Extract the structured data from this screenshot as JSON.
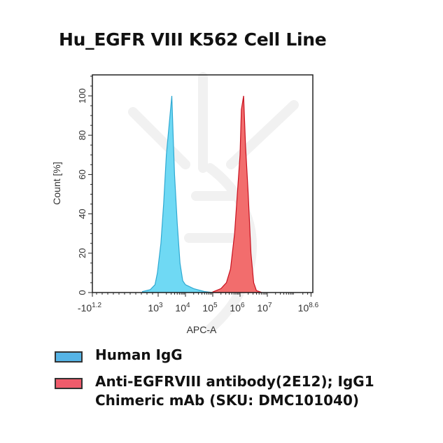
{
  "title": "Hu_EGFR VIII K562 Cell Line",
  "chart_data": {
    "type": "area",
    "title": "Hu_EGFR VIII K562 Cell Line",
    "xlabel": "APC-A",
    "ylabel": "Count [%]",
    "x_scale": "biexponential (log)",
    "x_ticks": [
      {
        "base": "-10",
        "exp": "1.2"
      },
      {
        "base": "10",
        "exp": "3"
      },
      {
        "base": "10",
        "exp": "4"
      },
      {
        "base": "10",
        "exp": "5"
      },
      {
        "base": "10",
        "exp": "6"
      },
      {
        "base": "10",
        "exp": "7"
      },
      {
        "base": "10",
        "exp": "8.6"
      }
    ],
    "y_ticks": [
      "0",
      "20",
      "40",
      "60",
      "80",
      "100"
    ],
    "ylim": [
      0,
      110
    ],
    "grid": false,
    "legend_placement": "bottom",
    "series": [
      {
        "name": "Human IgG",
        "color": "#6fd9f4",
        "stroke": "#2fa9d2",
        "x": [
          100,
          316,
          631,
          891,
          1259,
          1585,
          1995,
          2512,
          3162,
          3548,
          3981,
          5012,
          6310,
          7943,
          10000,
          19953,
          50119,
          100000
        ],
        "y": [
          0.5,
          1.5,
          4,
          10,
          25,
          45,
          70,
          85,
          100,
          80,
          60,
          35,
          15,
          6,
          4,
          2,
          0.5,
          0
        ]
      },
      {
        "name": "Anti-EGFRVIII antibody(2E12); IgG1 Chimeric mAb (SKU: DMC101040)",
        "color": "#f26d6d",
        "stroke": "#c8101e",
        "x": [
          100000,
          199526,
          316228,
          446684,
          630957,
          794328,
          1000000,
          1122018,
          1348963,
          1584893,
          1995262,
          2511886,
          3162278,
          3981072,
          6309573
        ],
        "y": [
          0.3,
          2,
          5,
          12,
          30,
          50,
          70,
          93,
          100,
          75,
          50,
          20,
          5,
          1,
          0
        ]
      }
    ]
  },
  "legend": [
    {
      "label": "Human IgG",
      "color": "#56b4e6"
    },
    {
      "label": "Anti-EGFRVIII antibody(2E12); IgG1",
      "label2": "Chimeric mAb (SKU: DMC101040)",
      "color": "#ef5b6b"
    }
  ]
}
